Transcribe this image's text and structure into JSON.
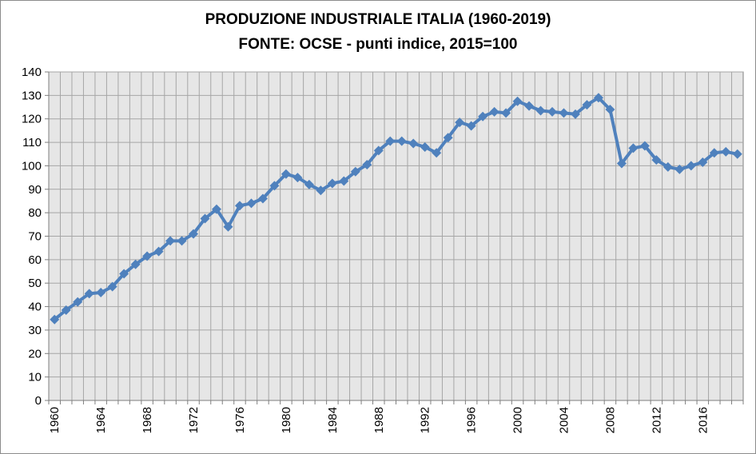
{
  "chart_data": {
    "type": "line",
    "title": "PRODUZIONE INDUSTRIALE ITALIA (1960-2019)",
    "subtitle": "FONTE: OCSE - punti indice, 2015=100",
    "xlabel": "",
    "ylabel": "",
    "ylim": [
      0,
      140
    ],
    "yticks": [
      0,
      10,
      20,
      30,
      40,
      50,
      60,
      70,
      80,
      90,
      100,
      110,
      120,
      130,
      140
    ],
    "xlim": [
      1960,
      2019
    ],
    "xtick_labels": [
      "1960",
      "1964",
      "1968",
      "1972",
      "1976",
      "1980",
      "1984",
      "1988",
      "1992",
      "1996",
      "2000",
      "2004",
      "2008",
      "2012",
      "2016"
    ],
    "grid": true,
    "legend": "none",
    "series": [
      {
        "color": "#4f81bd",
        "x": [
          1960,
          1961,
          1962,
          1963,
          1964,
          1965,
          1966,
          1967,
          1968,
          1969,
          1970,
          1971,
          1972,
          1973,
          1974,
          1975,
          1976,
          1977,
          1978,
          1979,
          1980,
          1981,
          1982,
          1983,
          1984,
          1985,
          1986,
          1987,
          1988,
          1989,
          1990,
          1991,
          1992,
          1993,
          1994,
          1995,
          1996,
          1997,
          1998,
          1999,
          2000,
          2001,
          2002,
          2003,
          2004,
          2005,
          2006,
          2007,
          2008,
          2009,
          2010,
          2011,
          2012,
          2013,
          2014,
          2015,
          2016,
          2017,
          2018,
          2019
        ],
        "values": [
          34.5,
          38.5,
          42,
          45.5,
          46,
          48.5,
          54,
          58,
          61.5,
          63.5,
          68,
          68,
          71,
          77.5,
          81.5,
          74,
          83,
          84,
          86,
          91.5,
          96.5,
          95,
          92,
          89.5,
          92.5,
          93.5,
          97.5,
          100.5,
          106.5,
          110.5,
          110.5,
          109.5,
          108,
          105.5,
          112,
          118.5,
          117,
          121,
          123,
          122.5,
          127.5,
          125.5,
          123.5,
          123,
          122.5,
          122,
          126,
          129,
          124,
          101,
          107.5,
          108.5,
          102.5,
          99.5,
          98.5,
          100,
          101.5,
          105.5,
          106,
          105
        ]
      }
    ]
  },
  "colors": {
    "plot_background": "#e6e6e6",
    "gridline": "#a6a6a6",
    "series_line": "#4f81bd"
  }
}
